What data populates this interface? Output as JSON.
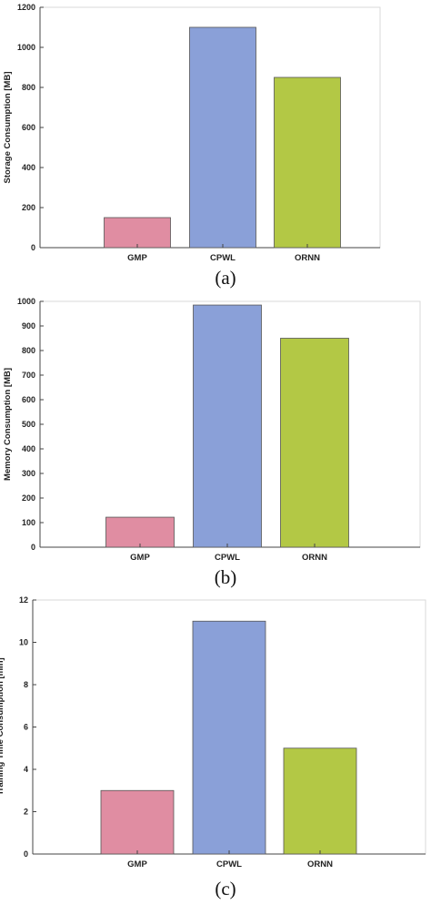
{
  "colors": {
    "GMP": "#e08da2",
    "CPWL": "#8aa0d8",
    "ORNN": "#b3c845",
    "axis": "#444444",
    "bar_edge": "#555555"
  },
  "chart_data": [
    {
      "type": "bar",
      "categories": [
        "GMP",
        "CPWL",
        "ORNN"
      ],
      "values": [
        150,
        1100,
        850
      ],
      "title": "",
      "xlabel": "",
      "ylabel": "Storage Consumption [MB]",
      "ylim": [
        0,
        1200
      ],
      "yticks": [
        0,
        200,
        400,
        600,
        800,
        1000,
        1200
      ],
      "grid": false,
      "caption": "(a)"
    },
    {
      "type": "bar",
      "categories": [
        "GMP",
        "CPWL",
        "ORNN"
      ],
      "values": [
        122,
        985,
        850
      ],
      "title": "",
      "xlabel": "",
      "ylabel": "Memory Consumption [MB]",
      "ylim": [
        0,
        1000
      ],
      "yticks": [
        0,
        100,
        200,
        300,
        400,
        500,
        600,
        700,
        800,
        900,
        1000
      ],
      "grid": false,
      "caption": "(b)"
    },
    {
      "type": "bar",
      "categories": [
        "GMP",
        "CPWL",
        "ORNN"
      ],
      "values": [
        3,
        11,
        5
      ],
      "title": "",
      "xlabel": "",
      "ylabel": "Training Time Consumption [min]",
      "ylim": [
        0,
        12
      ],
      "yticks": [
        0,
        2,
        4,
        6,
        8,
        10,
        12
      ],
      "grid": false,
      "caption": "(c)"
    }
  ]
}
